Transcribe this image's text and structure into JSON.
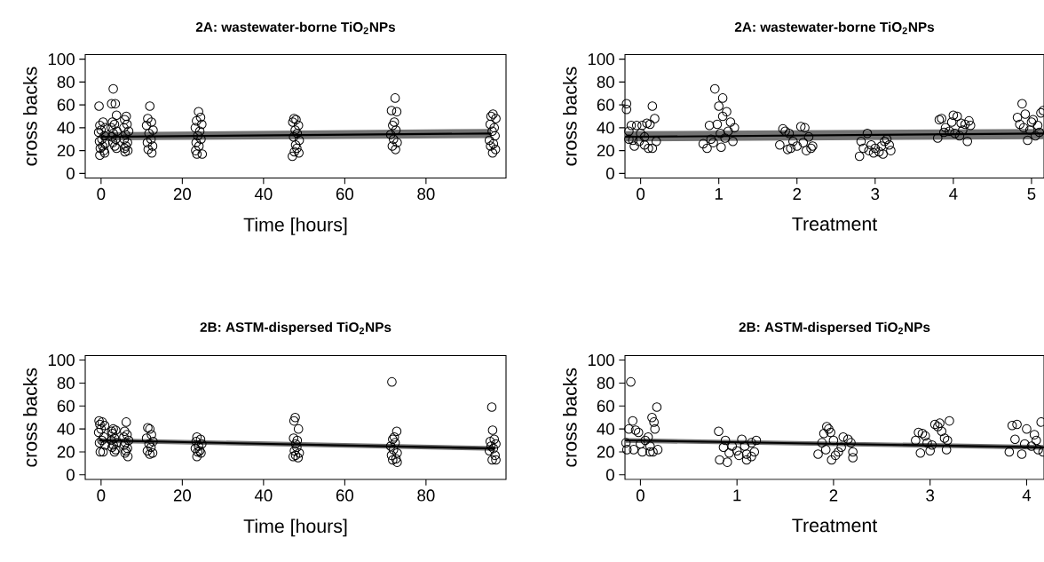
{
  "chart_data": [
    {
      "type": "scatter",
      "title": "2A: wastewater-borne TiO$_{2}$NPs",
      "xlabel": "Time [hours]",
      "ylabel": "cross backs",
      "xlim": [
        -3.9,
        99.7
      ],
      "ylim": [
        -4,
        104
      ],
      "xticks": [
        0,
        20,
        40,
        60,
        80
      ],
      "yticks": [
        0,
        20,
        40,
        60,
        80,
        100
      ],
      "marker": "circle",
      "grid": false,
      "series": [
        {
          "color": "#000000",
          "x": [
            -0.5,
            0.5,
            -0.3,
            1,
            0,
            -0.6,
            0.8,
            0.2,
            -0.4,
            1,
            0.4,
            -0.2,
            0.7,
            -0.3,
            0.9,
            3,
            2.6,
            3.5,
            3.8,
            2.8,
            3.3,
            2.5,
            3.9,
            3,
            2.7,
            3.6,
            2.9,
            3.4,
            3.8,
            6.2,
            5.8,
            6.4,
            5.6,
            6.8,
            6,
            5.7,
            6.5,
            6.1,
            5.8,
            6.6,
            5.9,
            12,
            11.5,
            12.4,
            11.2,
            12.8,
            11.8,
            12.3,
            11.4,
            12.7,
            11.6,
            12.5,
            24,
            24.5,
            23.5,
            24.8,
            23.2,
            24.3,
            23.8,
            24.6,
            23.4,
            24.1,
            23.3,
            23.6,
            24.9,
            47.5,
            48,
            47.2,
            48.6,
            47.8,
            48.3,
            47.4,
            48.8,
            47.9,
            48.2,
            47.6,
            47.1,
            48.7,
            72.4,
            71.5,
            72.8,
            72.2,
            71.8,
            72.6,
            71.3,
            72,
            72.9,
            71.7,
            72.5,
            96.5,
            96,
            97.2,
            95.8,
            96.8,
            96.3,
            97,
            95.6,
            96.6,
            95.9,
            97.1,
            96.4
          ],
          "values": [
            59,
            45,
            42,
            40,
            38,
            36,
            33,
            30,
            28,
            26,
            24,
            22,
            20,
            16,
            18,
            74,
            61,
            61,
            51,
            45,
            43,
            40,
            37,
            35,
            32,
            30,
            27,
            24,
            22,
            50,
            47,
            43,
            40,
            37,
            34,
            30,
            27,
            24,
            22,
            20,
            19,
            59,
            48,
            45,
            42,
            38,
            35,
            30,
            27,
            24,
            21,
            18,
            54,
            49,
            46,
            43,
            40,
            37,
            33,
            30,
            27,
            24,
            20,
            17,
            17,
            48,
            47,
            45,
            42,
            38,
            35,
            32,
            29,
            25,
            22,
            19,
            15,
            18,
            66,
            55,
            54,
            45,
            42,
            38,
            34,
            30,
            27,
            24,
            21,
            52,
            50,
            48,
            43,
            40,
            37,
            33,
            29,
            26,
            24,
            21,
            18
          ]
        },
        {
          "type": "line",
          "color": "#000000",
          "marker": "none",
          "line_style": "solid",
          "x": [
            0,
            96
          ],
          "values": [
            32,
            35
          ],
          "lower": [
            29,
            31
          ],
          "upper": [
            36,
            39
          ]
        }
      ]
    },
    {
      "type": "scatter",
      "title": "2A: wastewater-borne TiO$_{2}$NPs",
      "xlabel": "Treatment",
      "ylabel": "cross backs",
      "xlim": [
        -0.2,
        5.16
      ],
      "ylim": [
        -4,
        104
      ],
      "xticks": [
        0,
        1,
        2,
        3,
        4,
        5
      ],
      "yticks": [
        0,
        20,
        40,
        60,
        80,
        100
      ],
      "marker": "circle",
      "grid": false,
      "series": [
        {
          "color": "#000000",
          "x": [
            -0.18,
            -0.18,
            -0.12,
            -0.05,
            0.02,
            0.08,
            0.12,
            0.18,
            0.15,
            -0.15,
            -0.1,
            -0.02,
            0.05,
            0.1,
            0.15,
            -0.08,
            0.0,
            0.2,
            -0.15,
            0.05,
            0.95,
            1.05,
            1.0,
            1.05,
            1.1,
            0.88,
            0.98,
            1.15,
            1.2,
            0.8,
            0.85,
            0.9,
            1.02,
            1.08,
            1.03,
            1.18,
            1.12,
            0.93,
            1.82,
            1.85,
            1.9,
            2.05,
            2.1,
            2.15,
            1.78,
            1.95,
            2.0,
            1.88,
            2.18,
            2.2,
            2.08,
            1.92,
            2.12,
            2.82,
            2.8,
            2.9,
            2.95,
            3.0,
            3.05,
            3.1,
            3.15,
            3.2,
            2.85,
            2.98,
            3.12,
            3.18,
            3.08,
            2.92,
            3.8,
            3.82,
            3.85,
            3.9,
            4.0,
            4.05,
            4.1,
            4.15,
            4.2,
            4.18,
            3.95,
            4.08,
            3.88,
            4.12,
            4.22,
            3.98,
            4.02,
            4.82,
            4.88,
            4.92,
            4.85,
            5.0,
            4.95,
            5.05,
            5.1,
            5.12,
            5.15,
            4.9,
            5.08,
            4.98,
            5.02
          ],
          "values": [
            61,
            56,
            42,
            42,
            42,
            44,
            43,
            48,
            59,
            30,
            29,
            28,
            25,
            22,
            22,
            24,
            35,
            28,
            37,
            32,
            74,
            66,
            59,
            50,
            54,
            42,
            43,
            45,
            40,
            26,
            22,
            30,
            35,
            31,
            23,
            28,
            37,
            27,
            39,
            37,
            35,
            41,
            40,
            32,
            25,
            28,
            24,
            21,
            22,
            24,
            27,
            22,
            20,
            28,
            15,
            35,
            25,
            22,
            19,
            17,
            30,
            20,
            22,
            18,
            28,
            25,
            24,
            20,
            31,
            47,
            48,
            40,
            51,
            50,
            44,
            43,
            46,
            28,
            37,
            33,
            36,
            38,
            42,
            45,
            35,
            49,
            61,
            52,
            43,
            45,
            29,
            33,
            36,
            53,
            55,
            40,
            42,
            38,
            47
          ]
        },
        {
          "type": "line",
          "color": "#000000",
          "marker": "none",
          "line_style": "solid",
          "x": [
            -0.2,
            5.16
          ],
          "values": [
            32,
            35
          ],
          "lower": [
            28,
            30
          ],
          "upper": [
            37,
            39
          ]
        }
      ]
    },
    {
      "type": "scatter",
      "title": "2B: ASTM-dispersed TiO$_{2}$NPs",
      "xlabel": "Time [hours]",
      "ylabel": "cross backs",
      "xlim": [
        -3.9,
        99.7
      ],
      "ylim": [
        -4,
        104
      ],
      "xticks": [
        0,
        20,
        40,
        60,
        80
      ],
      "yticks": [
        0,
        20,
        40,
        60,
        80,
        100
      ],
      "marker": "circle",
      "grid": false,
      "series": [
        {
          "color": "#000000",
          "x": [
            -0.5,
            0.3,
            -0.3,
            0.9,
            0,
            -0.6,
            0.7,
            0.2,
            -0.4,
            -0.2,
            0.5,
            1,
            3,
            2.6,
            3.6,
            2.8,
            3.3,
            2.5,
            3.9,
            3,
            2.7,
            3.6,
            3.3,
            6.2,
            5.8,
            6.4,
            5.6,
            6.8,
            6,
            5.7,
            6.5,
            6.1,
            6.6,
            5.9,
            11.5,
            12,
            12.4,
            11.2,
            12.8,
            11.8,
            12.3,
            11.4,
            12.7,
            12,
            23.6,
            24.5,
            23.4,
            24.8,
            24,
            23.2,
            24.3,
            23.8,
            24.6,
            23.6,
            47.8,
            47.5,
            48.6,
            47.4,
            48.3,
            47.9,
            48.2,
            47.6,
            48.8,
            47.3,
            48.5,
            47.9,
            71.6,
            72.8,
            72.2,
            71.8,
            72.4,
            71.3,
            72,
            72.9,
            71.5,
            72.6,
            71.8,
            72.9,
            96.2,
            96.4,
            96.8,
            95.8,
            97.2,
            96,
            96.6,
            95.6,
            97,
            96.3,
            97.2
          ],
          "values": [
            47,
            46,
            44,
            43,
            40,
            37,
            33,
            30,
            28,
            20,
            20,
            26,
            40,
            38,
            39,
            36,
            32,
            30,
            28,
            26,
            24,
            22,
            20,
            46,
            38,
            35,
            33,
            30,
            28,
            26,
            23,
            21,
            16,
            19,
            41,
            40,
            35,
            32,
            29,
            27,
            24,
            21,
            19,
            18,
            33,
            31,
            29,
            27,
            25,
            23,
            21,
            20,
            19,
            16,
            50,
            47,
            40,
            32,
            30,
            27,
            24,
            21,
            19,
            16,
            15,
            17,
            81,
            38,
            33,
            31,
            28,
            25,
            22,
            19,
            17,
            14,
            13,
            11,
            59,
            39,
            31,
            29,
            27,
            25,
            23,
            21,
            17,
            13,
            13
          ]
        },
        {
          "type": "line",
          "color": "#000000",
          "marker": "none",
          "line_style": "solid",
          "x": [
            -0.5,
            97
          ],
          "values": [
            30,
            23
          ],
          "lower": [
            28,
            21
          ],
          "upper": [
            32,
            25
          ]
        }
      ]
    },
    {
      "type": "scatter",
      "title": "2B: ASTM-dispersed TiO$_{2}$NPs",
      "xlabel": "Treatment",
      "ylabel": "cross backs",
      "xlim": [
        -0.16,
        4.18
      ],
      "ylim": [
        -4,
        104
      ],
      "xticks": [
        0,
        1,
        2,
        3,
        4
      ],
      "yticks": [
        0,
        20,
        40,
        60,
        80,
        100
      ],
      "marker": "circle",
      "grid": false,
      "series": [
        {
          "color": "#000000",
          "x": [
            -0.1,
            -0.08,
            -0.12,
            -0.05,
            -0.02,
            0.12,
            0.14,
            0.15,
            0.17,
            -0.15,
            -0.14,
            -0.07,
            0.02,
            0.05,
            0.08,
            0.1,
            0.13,
            0.18,
            0.0,
            0.1,
            0.81,
            0.82,
            0.9,
            0.88,
            0.95,
            1.0,
            1.05,
            1.1,
            1.1,
            1.15,
            1.18,
            1.2,
            0.92,
            1.02,
            1.08,
            1.15,
            0.86,
            1.84,
            1.88,
            1.9,
            1.93,
            1.95,
            1.97,
            2.0,
            2.05,
            2.1,
            2.15,
            2.18,
            2.2,
            1.98,
            2.02,
            1.92,
            2.08,
            2.2,
            2.85,
            2.88,
            2.92,
            2.95,
            2.9,
            3.0,
            3.05,
            3.08,
            3.1,
            3.15,
            3.17,
            3.2,
            3.12,
            3.02,
            2.97,
            3.18,
            3.82,
            3.85,
            3.9,
            3.95,
            4.0,
            4.05,
            4.1,
            4.15,
            4.17,
            4.08,
            3.88,
            3.98,
            4.12
          ],
          "values": [
            81,
            47,
            40,
            39,
            37,
            50,
            46,
            40,
            59,
            28,
            22,
            22,
            20,
            30,
            33,
            20,
            20,
            22,
            27,
            25,
            38,
            13,
            11,
            30,
            25,
            21,
            31,
            18,
            13,
            16,
            20,
            30,
            19,
            17,
            25,
            28,
            24,
            18,
            28,
            36,
            42,
            40,
            37,
            30,
            20,
            33,
            31,
            28,
            15,
            13,
            17,
            22,
            24,
            20,
            30,
            37,
            36,
            34,
            19,
            21,
            44,
            42,
            45,
            32,
            22,
            47,
            38,
            26,
            28,
            30,
            20,
            43,
            44,
            18,
            40,
            25,
            30,
            46,
            20,
            35,
            31,
            27,
            22
          ]
        },
        {
          "type": "line",
          "color": "#000000",
          "marker": "none",
          "line_style": "solid",
          "x": [
            -0.16,
            4.18
          ],
          "values": [
            30,
            24
          ],
          "lower": [
            28,
            22
          ],
          "upper": [
            32,
            26
          ]
        }
      ]
    }
  ]
}
